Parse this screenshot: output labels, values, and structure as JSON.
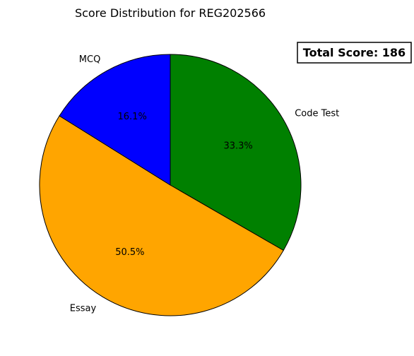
{
  "chart_data": {
    "type": "pie",
    "title": "Score Distribution for REG202566",
    "slices": [
      {
        "label": "Code Test",
        "percent": 33.3,
        "pct_label": "33.3%",
        "color": "#008000"
      },
      {
        "label": "Essay",
        "percent": 50.5,
        "pct_label": "50.5%",
        "color": "#FFA500"
      },
      {
        "label": "MCQ",
        "percent": 16.1,
        "pct_label": "16.1%",
        "color": "#0000FF"
      }
    ],
    "start_angle_deg": 90,
    "direction": "clockwise",
    "annotation": "Total Score: 186"
  }
}
